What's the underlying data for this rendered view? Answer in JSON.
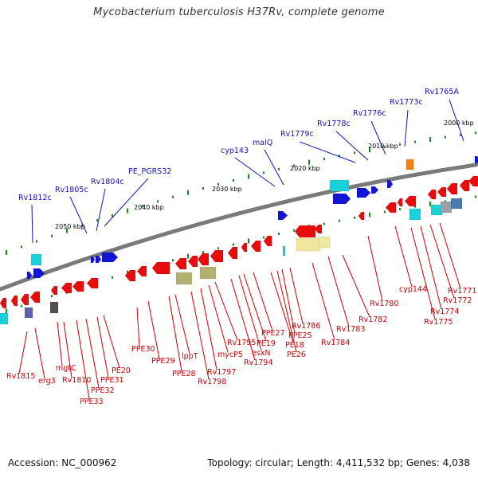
{
  "title": "Mycobacterium tuberculosis H37Rv, complete genome",
  "footer": {
    "accession": "Accession: NC_000962",
    "summary": "Topology: circular; Length: 4,411,532 bp; Genes: 4,038"
  },
  "colors": {
    "forward_gene": "#1414d4",
    "reverse_gene": "#e80c0c",
    "forward_label": "#1010c0",
    "reverse_label": "#cc0000",
    "backbone": "#7a7a7a",
    "tick": "#1a8a1a",
    "cyan": "#19d2da",
    "olive": "#b4b070",
    "pale_yellow": "#f0e6a0",
    "orange": "#f08010",
    "steel_blue": "#4a7ab0",
    "grey": "#a0a0a8",
    "dark_grey": "#505050",
    "purple": "#6060b0"
  },
  "kbp_labels": [
    "2000 kbp",
    "2010 kbp",
    "2020 kbp",
    "2030 kbp",
    "2040 kbp",
    "2050 kbp"
  ],
  "forward_labels": [
    "Rv1765A",
    "Rv1773c",
    "Rv1776c",
    "Rv1778c",
    "Rv1779c",
    "malQ",
    "cyp143",
    "PE_PGRS32",
    "Rv1804c",
    "Rv1805c",
    "Rv1812c"
  ],
  "reverse_labels": [
    "Rv1771",
    "Rv1772",
    "Rv1774",
    "Rv1775",
    "cyp144",
    "Rv1780",
    "Rv1782",
    "Rv1783",
    "Rv1784",
    "Rv1786",
    "PPE27",
    "PPE25",
    "PE18",
    "PE26",
    "PE19",
    "esxN",
    "Rv1794",
    "Rv1795",
    "mycP5",
    "Rv1797",
    "Rv1798",
    "lppT",
    "PPE28",
    "PPE29",
    "PPE30",
    "PE20",
    "PPE31",
    "PPE32",
    "PPE33",
    "Rv1810",
    "mgtC",
    "erg3",
    "Rv1815"
  ]
}
